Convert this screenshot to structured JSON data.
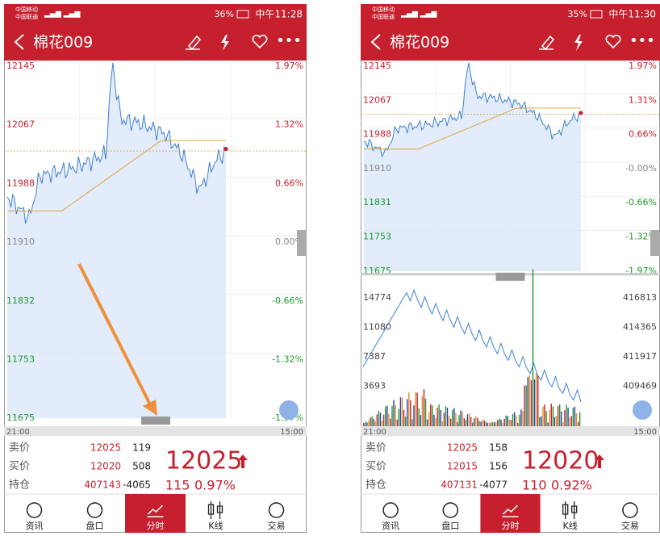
{
  "phones": [
    {
      "status": {
        "carrier1": "中国移动",
        "carrier2": "中国联通",
        "battery": "36%",
        "time": "中午11:28"
      },
      "header": {
        "title": "棉花009"
      },
      "chart": {
        "price_labels": [
          12145,
          12067,
          11988,
          11910,
          11832,
          11753,
          11675
        ],
        "percent_labels": [
          "1.97%",
          "1.32%",
          "0.66%",
          "0.00%",
          "-0.66%",
          "-1.32%",
          "-1.97%"
        ],
        "time_start": "21:00",
        "time_end": "15:00"
      },
      "quote": {
        "rows": [
          {
            "label": "卖价",
            "price": 12025,
            "volume": 119
          },
          {
            "label": "买价",
            "price": 12020,
            "volume": 508
          },
          {
            "label": "持仓",
            "price": 407143,
            "volume": -4065
          }
        ],
        "last": 12025,
        "change": 115,
        "change_pct": "0.97%"
      },
      "nav": [
        "资讯",
        "盘口",
        "分时",
        "K线",
        "交易"
      ]
    },
    {
      "status": {
        "carrier1": "中国移动",
        "carrier2": "中国联通",
        "battery": "35%",
        "time": "中午11:30"
      },
      "header": {
        "title": "棉花009"
      },
      "chart": {
        "price_labels": [
          12145,
          12067,
          11988,
          11910,
          11831,
          11753,
          11675
        ],
        "percent_labels": [
          "1.97%",
          "1.31%",
          "0.66%",
          "-0.00%",
          "-0.66%",
          "-1.32%",
          "-1.97%"
        ],
        "volume_labels": [
          14774,
          11080,
          7387,
          3693
        ],
        "position_labels": [
          416813,
          414365,
          411917,
          409469
        ],
        "time_start": "21:00",
        "time_end": "15:00"
      },
      "quote": {
        "rows": [
          {
            "label": "卖价",
            "price": 12025,
            "volume": 158
          },
          {
            "label": "买价",
            "price": 12015,
            "volume": 156
          },
          {
            "label": "持仓",
            "price": 407131,
            "volume": -4077
          }
        ],
        "last": 12020,
        "change": 110,
        "change_pct": "0.92%"
      },
      "nav": [
        "资讯",
        "盘口",
        "分时",
        "K线",
        "交易"
      ]
    }
  ]
}
